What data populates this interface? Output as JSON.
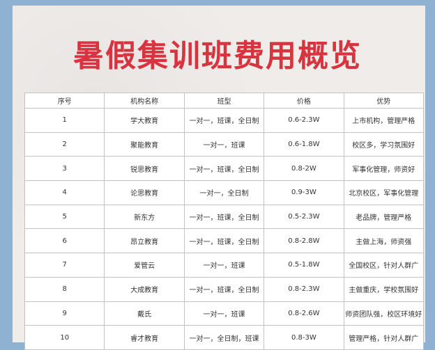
{
  "title": "暑假集训班费用概览",
  "table": {
    "headers": [
      "序号",
      "机构名称",
      "班型",
      "价格",
      "优势"
    ],
    "rows": [
      [
        "1",
        "学大教育",
        "一对一，班课，全日制",
        "0.6-2.3W",
        "上市机构，管理严格"
      ],
      [
        "2",
        "聚能教育",
        "一对一，班课",
        "0.6-1.8W",
        "校区多，学习氛围好"
      ],
      [
        "3",
        "锐思教育",
        "一对一，班课，全日制",
        "0.8-2W",
        "军事化管理，师资好"
      ],
      [
        "4",
        "论思教育",
        "一对一，全日制",
        "0.9-3W",
        "北京校区，军事化管理"
      ],
      [
        "5",
        "新东方",
        "一对一，班课，全日制",
        "0.5-2.3W",
        "老品牌，管理严格"
      ],
      [
        "6",
        "昂立教育",
        "一对一，班课，全日制",
        "0.8-2.8W",
        "主做上海，师资强"
      ],
      [
        "7",
        "爱管云",
        "一对一，班课",
        "0.5-1.8W",
        "全国校区，针对人群广"
      ],
      [
        "8",
        "大成教育",
        "一对一，班课，全日制",
        "0.8-2.3W",
        "主做重庆，学校氛围好"
      ],
      [
        "9",
        "戴氏",
        "一对一，班课",
        "0.8-2.6W",
        "师资团队强，校区环境好"
      ],
      [
        "10",
        "睿才教育",
        "一对一，全日制，班课",
        "0.8-3W",
        "管理严格，针对人群广"
      ]
    ]
  },
  "colors": {
    "title": "#d7343f",
    "frame": "#8fb1d2",
    "paper": "#efecea"
  }
}
